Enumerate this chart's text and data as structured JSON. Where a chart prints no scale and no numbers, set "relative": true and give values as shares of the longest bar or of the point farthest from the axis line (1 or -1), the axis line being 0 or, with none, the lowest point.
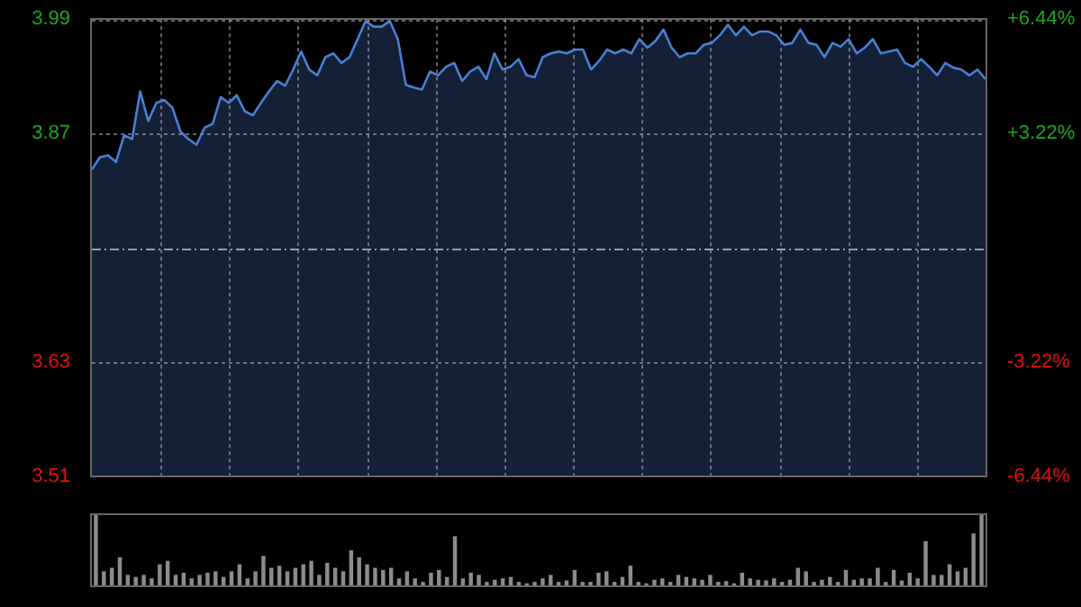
{
  "chart_data": [
    {
      "type": "area",
      "color": "#4a7fd4",
      "marker": "none",
      "grid": true,
      "legend": false,
      "tick_labels": "y",
      "categories": [
        null,
        null,
        null,
        null,
        null,
        null,
        null,
        null,
        null,
        null,
        null,
        null,
        null,
        null,
        null,
        null,
        null,
        null,
        null,
        null,
        null,
        null,
        null,
        null,
        null,
        null,
        null,
        null,
        null,
        null,
        null,
        null,
        null,
        null,
        null,
        null,
        null,
        null,
        null,
        null,
        null,
        null,
        null,
        null,
        null,
        null,
        null,
        null,
        null,
        null,
        null,
        null,
        null,
        null,
        null,
        null,
        null,
        null,
        null,
        null,
        null,
        null,
        null,
        null,
        null,
        null,
        null,
        null,
        null,
        null,
        null,
        null,
        null,
        null,
        null,
        null,
        null,
        null,
        null,
        null,
        null,
        null,
        null,
        null,
        null,
        null,
        null,
        null,
        null,
        null,
        null,
        null,
        null,
        null,
        null,
        null,
        null,
        null,
        null,
        null,
        null,
        null,
        null,
        null,
        null,
        null,
        null,
        null,
        null,
        null,
        null,
        null
      ],
      "values": [
        3.832,
        3.845,
        3.847,
        3.84,
        3.868,
        3.864,
        3.914,
        3.883,
        3.902,
        3.905,
        3.897,
        3.872,
        3.864,
        3.858,
        3.876,
        3.88,
        3.908,
        3.902,
        3.91,
        3.893,
        3.889,
        3.902,
        3.914,
        3.925,
        3.92,
        3.937,
        3.956,
        3.937,
        3.931,
        3.95,
        3.954,
        3.944,
        3.95,
        3.969,
        3.988,
        3.982,
        3.982,
        3.988,
        3.969,
        3.921,
        3.918,
        3.916,
        3.935,
        3.931,
        3.94,
        3.944,
        3.925,
        3.935,
        3.94,
        3.927,
        3.954,
        3.937,
        3.94,
        3.948,
        3.931,
        3.929,
        3.95,
        3.954,
        3.956,
        3.954,
        3.958,
        3.958,
        3.937,
        3.946,
        3.958,
        3.954,
        3.958,
        3.954,
        3.969,
        3.96,
        3.967,
        3.979,
        3.96,
        3.95,
        3.954,
        3.954,
        3.963,
        3.965,
        3.973,
        3.984,
        3.973,
        3.982,
        3.973,
        3.977,
        3.977,
        3.973,
        3.963,
        3.965,
        3.979,
        3.965,
        3.963,
        3.95,
        3.965,
        3.961,
        3.969,
        3.954,
        3.96,
        3.969,
        3.954,
        3.956,
        3.958,
        3.944,
        3.94,
        3.948,
        3.94,
        3.931,
        3.944,
        3.939,
        3.937,
        3.931,
        3.937,
        3.927
      ],
      "ylim": [
        3.51,
        3.99
      ],
      "yticks": [
        3.51,
        3.63,
        3.87,
        3.99
      ],
      "y2lim": [
        -6.44,
        6.44
      ],
      "y2ticks": [
        {
          "value": -6.44,
          "label": "-6.44%"
        },
        {
          "value": -3.22,
          "label": "-3.22%"
        },
        {
          "value": 3.22,
          "label": "+3.22%"
        },
        {
          "value": 6.44,
          "label": "+6.44%"
        }
      ],
      "ref_lines": [
        {
          "axis": "y",
          "value": 3.75,
          "color": "#8fa0b5",
          "line_style": "dashed"
        }
      ]
    },
    {
      "type": "bar",
      "color": "#8c8c8c",
      "relative": true,
      "grid": false,
      "tick_labels": false,
      "legend": false,
      "categories": [
        null,
        null,
        null,
        null,
        null,
        null,
        null,
        null,
        null,
        null,
        null,
        null,
        null,
        null,
        null,
        null,
        null,
        null,
        null,
        null,
        null,
        null,
        null,
        null,
        null,
        null,
        null,
        null,
        null,
        null,
        null,
        null,
        null,
        null,
        null,
        null,
        null,
        null,
        null,
        null,
        null,
        null,
        null,
        null,
        null,
        null,
        null,
        null,
        null,
        null,
        null,
        null,
        null,
        null,
        null,
        null,
        null,
        null,
        null,
        null,
        null,
        null,
        null,
        null,
        null,
        null,
        null,
        null,
        null,
        null,
        null,
        null,
        null,
        null,
        null,
        null,
        null,
        null,
        null,
        null,
        null,
        null,
        null,
        null,
        null,
        null,
        null,
        null,
        null,
        null,
        null,
        null,
        null,
        null,
        null,
        null,
        null,
        null,
        null,
        null,
        null,
        null,
        null,
        null,
        null,
        null,
        null,
        null,
        null,
        null,
        null,
        null
      ],
      "values": [
        1.0,
        0.2,
        0.25,
        0.4,
        0.15,
        0.12,
        0.15,
        0.1,
        0.3,
        0.35,
        0.15,
        0.18,
        0.1,
        0.15,
        0.18,
        0.2,
        0.12,
        0.2,
        0.3,
        0.1,
        0.2,
        0.42,
        0.25,
        0.28,
        0.2,
        0.25,
        0.3,
        0.35,
        0.15,
        0.32,
        0.25,
        0.2,
        0.5,
        0.4,
        0.3,
        0.25,
        0.22,
        0.25,
        0.1,
        0.2,
        0.1,
        0.05,
        0.18,
        0.22,
        0.12,
        0.7,
        0.1,
        0.18,
        0.15,
        0.05,
        0.08,
        0.1,
        0.12,
        0.05,
        0.03,
        0.05,
        0.1,
        0.15,
        0.05,
        0.07,
        0.22,
        0.05,
        0.05,
        0.18,
        0.2,
        0.05,
        0.12,
        0.28,
        0.05,
        0.03,
        0.08,
        0.1,
        0.05,
        0.15,
        0.12,
        0.1,
        0.08,
        0.15,
        0.05,
        0.06,
        0.03,
        0.18,
        0.1,
        0.08,
        0.07,
        0.1,
        0.05,
        0.08,
        0.25,
        0.2,
        0.05,
        0.08,
        0.12,
        0.05,
        0.22,
        0.08,
        0.1,
        0.1,
        0.25,
        0.05,
        0.22,
        0.07,
        0.18,
        0.1,
        0.63,
        0.15,
        0.15,
        0.3,
        0.2,
        0.25,
        0.74,
        1.0
      ]
    }
  ]
}
